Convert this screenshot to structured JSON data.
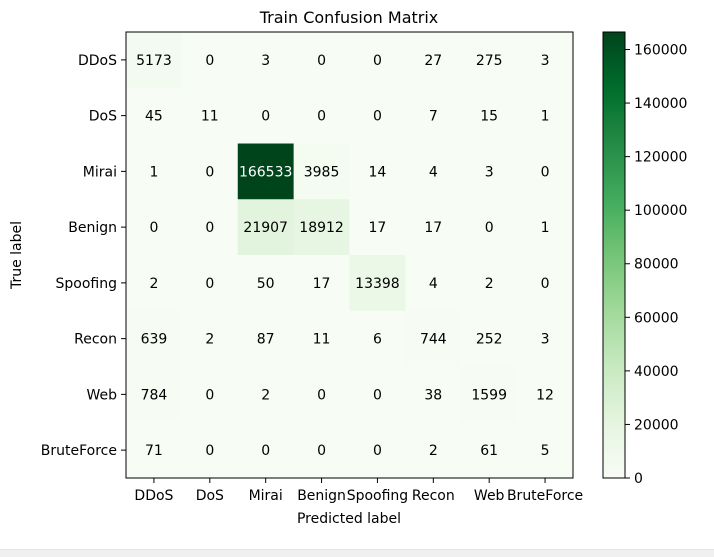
{
  "chart_data": {
    "type": "heatmap",
    "title": "Train Confusion Matrix",
    "xlabel": "Predicted label",
    "ylabel": "True label",
    "x_categories": [
      "DDoS",
      "DoS",
      "Mirai",
      "Benign",
      "Spoofing",
      "Recon",
      "Web",
      "BruteForce"
    ],
    "y_categories": [
      "DDoS",
      "DoS",
      "Mirai",
      "Benign",
      "Spoofing",
      "Recon",
      "Web",
      "BruteForce"
    ],
    "values": [
      [
        5173,
        0,
        3,
        0,
        0,
        27,
        275,
        3
      ],
      [
        45,
        11,
        0,
        0,
        0,
        7,
        15,
        1
      ],
      [
        1,
        0,
        166533,
        3985,
        14,
        4,
        3,
        0
      ],
      [
        0,
        0,
        21907,
        18912,
        17,
        17,
        0,
        1
      ],
      [
        2,
        0,
        50,
        17,
        13398,
        4,
        2,
        0
      ],
      [
        639,
        2,
        87,
        11,
        6,
        744,
        252,
        3
      ],
      [
        784,
        0,
        2,
        0,
        0,
        38,
        1599,
        12
      ],
      [
        71,
        0,
        0,
        0,
        0,
        2,
        61,
        5
      ]
    ],
    "colormap": "Greens",
    "colorbar": {
      "range": [
        0,
        166533
      ],
      "ticks": [
        0,
        20000,
        40000,
        60000,
        80000,
        100000,
        120000,
        140000,
        160000
      ],
      "tick_labels": [
        "0",
        "20000",
        "40000",
        "60000",
        "80000",
        "100000",
        "120000",
        "140000",
        "160000"
      ]
    },
    "text_color_dark": "#000000",
    "text_color_light": "#ffffff"
  }
}
